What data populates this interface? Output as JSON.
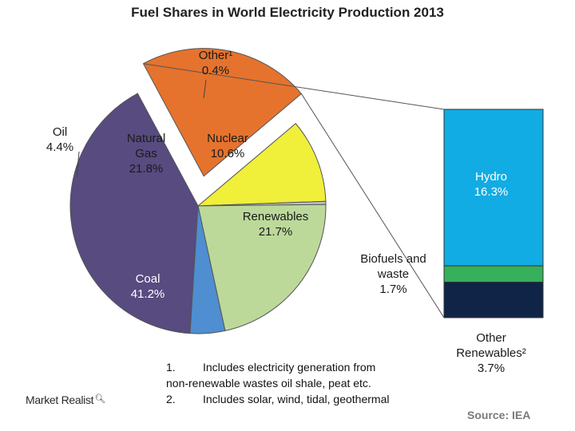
{
  "title": "Fuel Shares in World Electricity Production 2013",
  "chart_data": [
    {
      "type": "pie",
      "title": "Fuel Shares in World Electricity Production 2013",
      "slices": [
        {
          "name": "Coal",
          "value": 41.2,
          "label": "41.2%",
          "color": "#574b80"
        },
        {
          "name": "Renewables",
          "value": 21.7,
          "label": "21.7%",
          "color": "#e5732d"
        },
        {
          "name": "Nuclear",
          "value": 10.6,
          "label": "10.6%",
          "color": "#f0ef3a"
        },
        {
          "name": "Other",
          "value": 0.4,
          "label": "0.4%",
          "color": "#bfbfbf"
        },
        {
          "name": "Natural Gas",
          "value": 21.8,
          "label": "21.8%",
          "color": "#bcd99a"
        },
        {
          "name": "Oil",
          "value": 4.4,
          "label": "4.4%",
          "color": "#4f8ed0"
        }
      ]
    },
    {
      "type": "bar",
      "stacked": true,
      "title": "",
      "segments": [
        {
          "name": "Other Renewables",
          "value": 3.7,
          "label": "3.7%",
          "color": "#0f2447"
        },
        {
          "name": "Biofuels and waste",
          "value": 1.7,
          "label": "1.7%",
          "color": "#36b05a"
        },
        {
          "name": "Hydro",
          "value": 16.3,
          "label": "16.3%",
          "color": "#11ace3"
        }
      ]
    }
  ],
  "labels": {
    "other_name": "Other¹",
    "other_value": "0.4%",
    "oil_name": "Oil",
    "oil_value": "4.4%",
    "gas_name_1": "Natural",
    "gas_name_2": "Gas",
    "gas_value": "21.8%",
    "nuclear_name": "Nuclear",
    "nuclear_value": "10.6%",
    "renewables_name": "Renewables",
    "renewables_value": "21.7%",
    "coal_name": "Coal",
    "coal_value": "41.2%",
    "hydro_name": "Hydro",
    "hydro_value": "16.3%",
    "biofuels_name_1": "Biofuels and",
    "biofuels_name_2": "waste",
    "biofuels_value": "1.7%",
    "other_ren_name_1": "Other",
    "other_ren_name_2": "Renewables²",
    "other_ren_value": "3.7%"
  },
  "footnotes": [
    {
      "num": "1.",
      "lines": [
        "Includes electricity generation from",
        "non-renewable wastes oil shale, peat etc."
      ]
    },
    {
      "num": "2.",
      "lines": [
        "Includes solar, wind, tidal, geothermal"
      ]
    }
  ],
  "brand": "Market Realist",
  "brand_icon": "magnifier-icon",
  "source": "Source: IEA"
}
